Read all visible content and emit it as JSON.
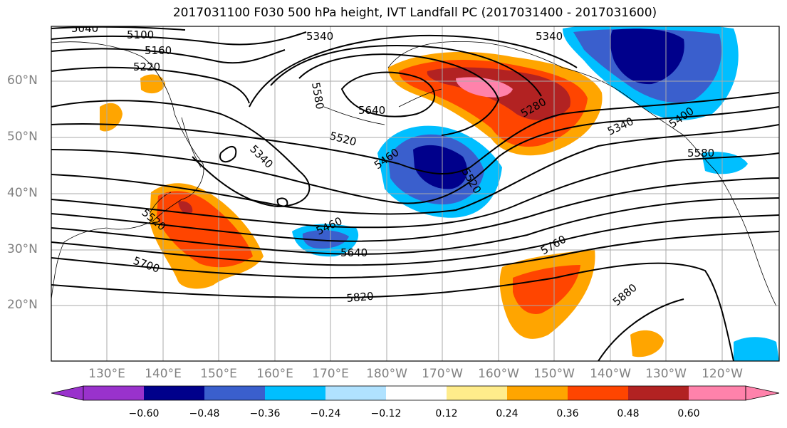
{
  "title": "2017031100 F030 500 hPa height, IVT Landfall PC (2017031400 - 2017031600)",
  "lat_labels": [
    "60°N",
    "50°N",
    "40°N",
    "30°N",
    "20°N"
  ],
  "lon_labels": [
    "130°E",
    "140°E",
    "150°E",
    "160°E",
    "170°E",
    "180°W",
    "170°W",
    "160°W",
    "150°W",
    "140°W",
    "130°W",
    "120°W"
  ],
  "contour_labels": [
    "5040",
    "5100",
    "5160",
    "5220",
    "5340",
    "5580",
    "5640",
    "5340",
    "5520",
    "5460",
    "5340",
    "5280",
    "5520",
    "5340",
    "5400",
    "5580",
    "5520",
    "5460",
    "5640",
    "5700",
    "5820",
    "5760",
    "5880"
  ],
  "colorbar": {
    "ticks": [
      "−0.60",
      "−0.48",
      "−0.36",
      "−0.24",
      "−0.12",
      "0.12",
      "0.24",
      "0.36",
      "0.48",
      "0.60"
    ],
    "colors": [
      "#9932cc",
      "#00008b",
      "#3a5fcd",
      "#00bfff",
      "#b0e2ff",
      "#ffffff",
      "#ffec8b",
      "#ffa500",
      "#ff4500",
      "#b22222",
      "#ff82ab"
    ]
  }
}
